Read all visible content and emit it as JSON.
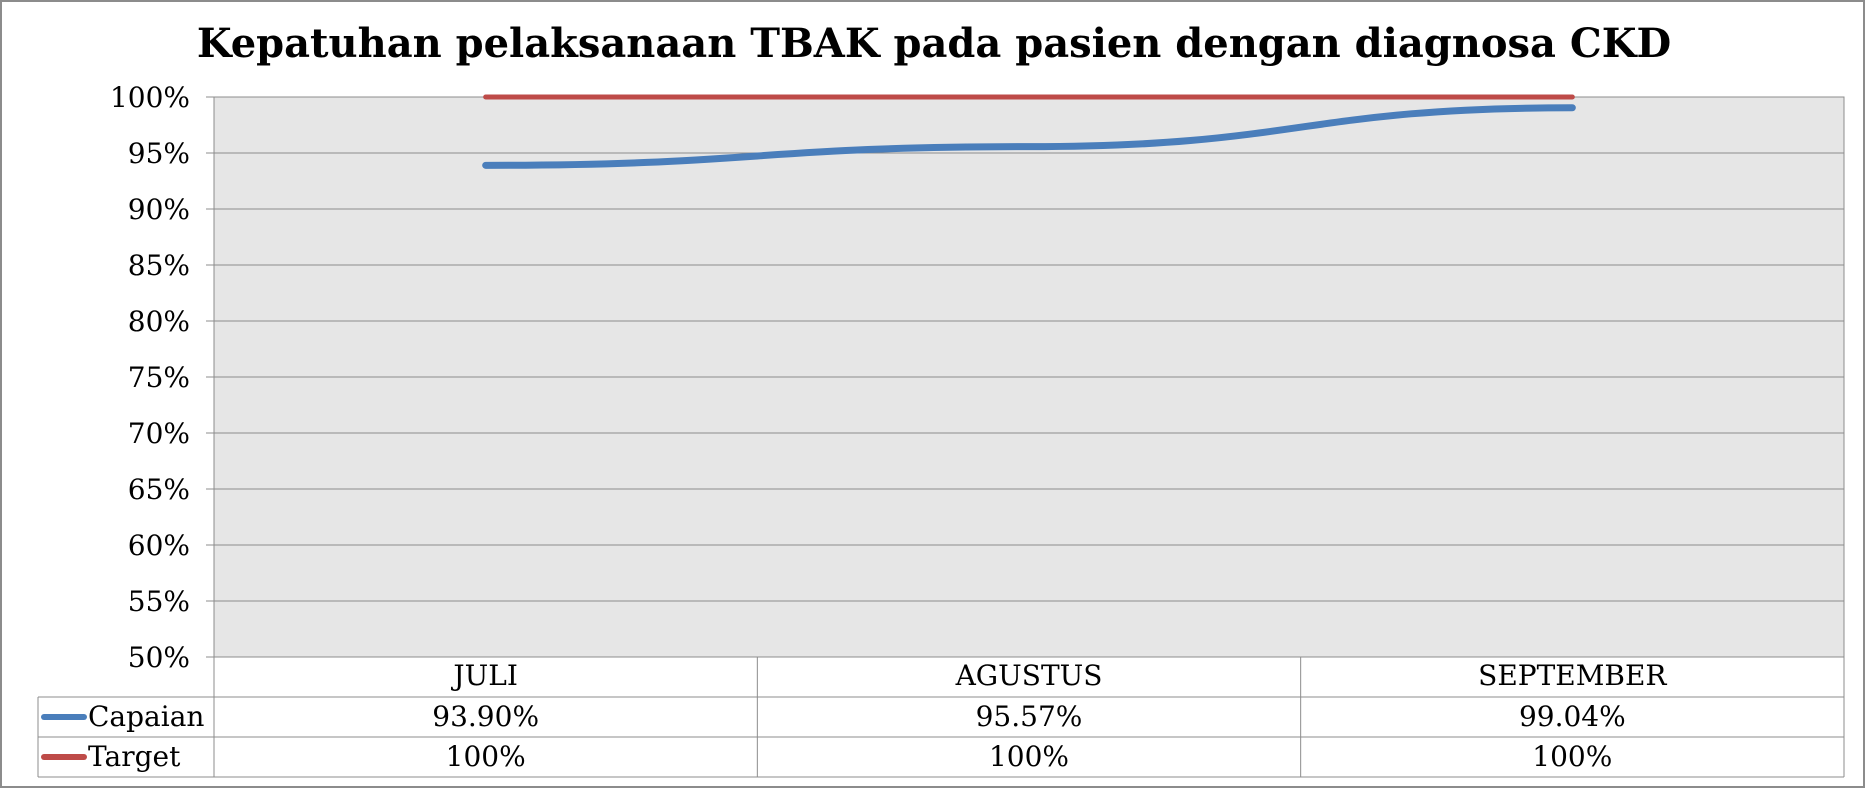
{
  "chart_data": {
    "type": "line",
    "title": "Kepatuhan pelaksanaan TBAK pada pasien dengan diagnosa CKD",
    "categories": [
      "JULI",
      "AGUSTUS",
      "SEPTEMBER"
    ],
    "series": [
      {
        "name": "Capaian",
        "values": [
          93.9,
          95.57,
          99.04
        ],
        "labels": [
          "93.90%",
          "95.57%",
          "99.04%"
        ],
        "color": "#4a7ebb"
      },
      {
        "name": "Target",
        "values": [
          100,
          100,
          100
        ],
        "labels": [
          "100%",
          "100%",
          "100%"
        ],
        "color": "#be4b48"
      }
    ],
    "ylim": [
      50,
      100
    ],
    "yticks": [
      50,
      55,
      60,
      65,
      70,
      75,
      80,
      85,
      90,
      95,
      100
    ],
    "ytick_labels": [
      "50%",
      "55%",
      "60%",
      "65%",
      "70%",
      "75%",
      "80%",
      "85%",
      "90%",
      "95%",
      "100%"
    ],
    "grid": true,
    "legend": "data-table",
    "plot_background": "#e6e6e6",
    "xlabel": "",
    "ylabel": ""
  }
}
